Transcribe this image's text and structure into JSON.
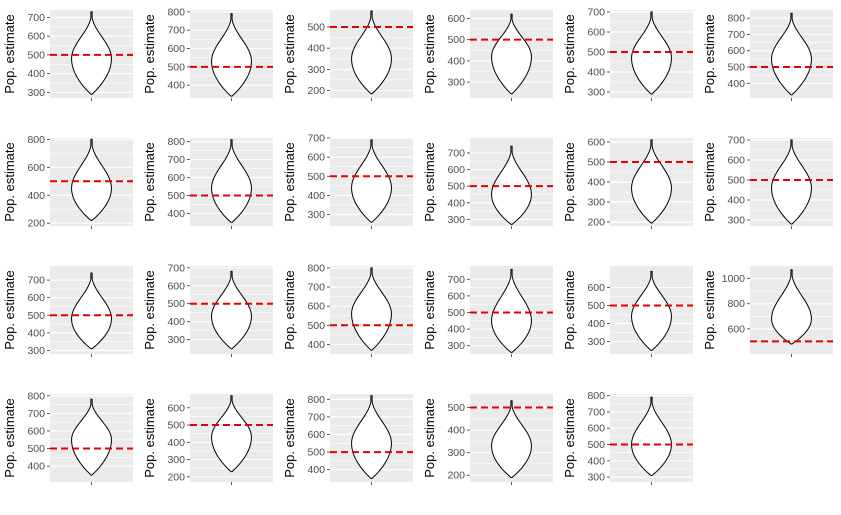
{
  "chart_data": {
    "type": "violin",
    "ylabel": "Pop. estimate",
    "reference_value": 500,
    "colors": {
      "panel_bg": "#ebebeb",
      "grid": "#ffffff",
      "violin_fill": "#ffffff",
      "violin_line": "#000000",
      "reference_line": "#e60000",
      "tick_text": "#4d4d4d"
    },
    "panels": [
      {
        "ticks": [
          300,
          400,
          500,
          600,
          700
        ],
        "ylim": [
          270,
          740
        ],
        "violin": {
          "min": 290,
          "max": 730,
          "mode": 480,
          "width": 0.48
        }
      },
      {
        "ticks": [
          400,
          500,
          600,
          700,
          800
        ],
        "ylim": [
          330,
          810
        ],
        "violin": {
          "min": 340,
          "max": 790,
          "mode": 530,
          "width": 0.48
        }
      },
      {
        "ticks": [
          200,
          300,
          400,
          500
        ],
        "ylim": [
          165,
          580
        ],
        "violin": {
          "min": 185,
          "max": 575,
          "mode": 350,
          "width": 0.48
        }
      },
      {
        "ticks": [
          300,
          400,
          500,
          600
        ],
        "ylim": [
          225,
          640
        ],
        "violin": {
          "min": 245,
          "max": 620,
          "mode": 420,
          "width": 0.48
        }
      },
      {
        "ticks": [
          300,
          400,
          500,
          600,
          700
        ],
        "ylim": [
          270,
          710
        ],
        "violin": {
          "min": 290,
          "max": 700,
          "mode": 470,
          "width": 0.48
        }
      },
      {
        "ticks": [
          400,
          500,
          600,
          700,
          800
        ],
        "ylim": [
          310,
          850
        ],
        "violin": {
          "min": 330,
          "max": 830,
          "mode": 550,
          "width": 0.48
        }
      },
      {
        "ticks": [
          200,
          400,
          600,
          800
        ],
        "ylim": [
          180,
          810
        ],
        "violin": {
          "min": 220,
          "max": 800,
          "mode": 450,
          "width": 0.48
        }
      },
      {
        "ticks": [
          400,
          500,
          600,
          700,
          800
        ],
        "ylim": [
          330,
          820
        ],
        "violin": {
          "min": 350,
          "max": 810,
          "mode": 540,
          "width": 0.48
        }
      },
      {
        "ticks": [
          300,
          400,
          500,
          600,
          700
        ],
        "ylim": [
          240,
          700
        ],
        "violin": {
          "min": 260,
          "max": 690,
          "mode": 440,
          "width": 0.48
        }
      },
      {
        "ticks": [
          300,
          400,
          500,
          600,
          700
        ],
        "ylim": [
          260,
          790
        ],
        "violin": {
          "min": 270,
          "max": 740,
          "mode": 450,
          "width": 0.48
        }
      },
      {
        "ticks": [
          200,
          300,
          400,
          500,
          600
        ],
        "ylim": [
          180,
          620
        ],
        "violin": {
          "min": 195,
          "max": 610,
          "mode": 370,
          "width": 0.48
        }
      },
      {
        "ticks": [
          300,
          400,
          500,
          600,
          700
        ],
        "ylim": [
          270,
          710
        ],
        "violin": {
          "min": 280,
          "max": 700,
          "mode": 460,
          "width": 0.48
        }
      },
      {
        "ticks": [
          300,
          400,
          500,
          600,
          700
        ],
        "ylim": [
          280,
          780
        ],
        "violin": {
          "min": 310,
          "max": 740,
          "mode": 480,
          "width": 0.48
        }
      },
      {
        "ticks": [
          300,
          400,
          500,
          600,
          700
        ],
        "ylim": [
          220,
          710
        ],
        "violin": {
          "min": 250,
          "max": 680,
          "mode": 430,
          "width": 0.48
        }
      },
      {
        "ticks": [
          400,
          500,
          600,
          700,
          800
        ],
        "ylim": [
          350,
          810
        ],
        "violin": {
          "min": 370,
          "max": 800,
          "mode": 560,
          "width": 0.48
        }
      },
      {
        "ticks": [
          300,
          400,
          500,
          600,
          700
        ],
        "ylim": [
          250,
          780
        ],
        "violin": {
          "min": 260,
          "max": 760,
          "mode": 450,
          "width": 0.48
        }
      },
      {
        "ticks": [
          300,
          400,
          500,
          600
        ],
        "ylim": [
          230,
          720
        ],
        "violin": {
          "min": 250,
          "max": 690,
          "mode": 440,
          "width": 0.48
        }
      },
      {
        "ticks": [
          600,
          800,
          1000
        ],
        "ylim": [
          400,
          1100
        ],
        "violin": {
          "min": 480,
          "max": 1070,
          "mode": 680,
          "width": 0.48
        }
      },
      {
        "ticks": [
          400,
          500,
          600,
          700,
          800
        ],
        "ylim": [
          310,
          810
        ],
        "violin": {
          "min": 350,
          "max": 780,
          "mode": 550,
          "width": 0.48
        }
      },
      {
        "ticks": [
          200,
          300,
          400,
          500,
          600
        ],
        "ylim": [
          170,
          680
        ],
        "violin": {
          "min": 230,
          "max": 670,
          "mode": 430,
          "width": 0.48
        }
      },
      {
        "ticks": [
          400,
          500,
          600,
          700,
          800
        ],
        "ylim": [
          330,
          830
        ],
        "violin": {
          "min": 350,
          "max": 820,
          "mode": 550,
          "width": 0.48
        }
      },
      {
        "ticks": [
          200,
          300,
          400,
          500
        ],
        "ylim": [
          170,
          560
        ],
        "violin": {
          "min": 190,
          "max": 530,
          "mode": 330,
          "width": 0.48
        }
      },
      {
        "ticks": [
          300,
          400,
          500,
          600,
          700,
          800
        ],
        "ylim": [
          270,
          810
        ],
        "violin": {
          "min": 310,
          "max": 790,
          "mode": 500,
          "width": 0.48
        }
      }
    ]
  }
}
